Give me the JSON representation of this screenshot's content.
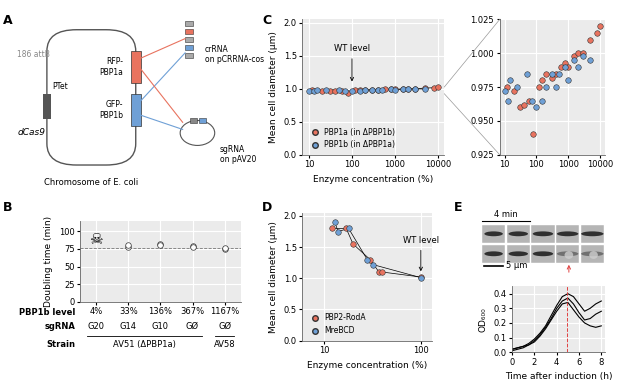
{
  "panel_labels": [
    "A",
    "B",
    "C",
    "D",
    "E"
  ],
  "diagram": {
    "chromosome": "Chromosome of E. coli",
    "attb": "186 attB",
    "promoter": "PTet",
    "dcas9": "dCas9",
    "rfp": "RFP-\nPBP1a",
    "gfp": "GFP-\nPBP1b",
    "crrna": "crRNA\non pCRRNA-cos",
    "sgrna": "sgRNA\non pAV20"
  },
  "images": {
    "time_scale": "4 min",
    "length_scale": "5 µm"
  },
  "chart_data": [
    {
      "type": "scatter",
      "ylabel": "Doubling time (min)",
      "categories": [
        "4%",
        "33%",
        "136%",
        "367%",
        "1167%"
      ],
      "row_labels": [
        "PBP1b level",
        "sgRNA",
        "Strain"
      ],
      "sgrna": [
        "G20",
        "G14",
        "G10",
        "GØ",
        "GØ"
      ],
      "strains": [
        {
          "label": "AV51 (ΔPBP1a)",
          "first": 0,
          "last": 3
        },
        {
          "label": "AV58",
          "first": 4,
          "last": 4
        }
      ],
      "series": [
        {
          "values": [
            null,
            78,
            82,
            79,
            75
          ],
          "color": "#ffffff"
        },
        {
          "values": [
            null,
            80,
            81,
            78,
            76
          ],
          "color": "#ffffff"
        }
      ],
      "lethal": {
        "index": 0,
        "value": 88,
        "label": "☠"
      },
      "reference_line": 76,
      "ylim": [
        0,
        115
      ],
      "yticks": [
        0,
        25,
        50,
        75,
        100
      ],
      "grid": true
    },
    {
      "type": "line",
      "xlabel": "Enzyme concentration (%)",
      "ylabel": "Mean cell diameter (µm)",
      "log": "x",
      "series": [
        {
          "name": "PBP1a (in ΔPBP1b)",
          "color": "#e8735f",
          "marker": "o",
          "x": [
            12,
            20,
            30,
            40,
            60,
            80,
            120,
            150,
            200,
            300,
            400,
            600,
            800,
            1000,
            1500,
            2000,
            3000,
            5000,
            8000,
            10000
          ],
          "values": [
            0.975,
            0.972,
            0.96,
            0.962,
            0.965,
            0.94,
            0.975,
            0.98,
            0.985,
            0.982,
            0.985,
            0.99,
            0.993,
            0.99,
            0.998,
            1.0,
            1.0,
            1.01,
            1.015,
            1.02
          ]
        },
        {
          "name": "PBP1b (in ΔPBP1a)",
          "color": "#6fa0d6",
          "marker": "o",
          "x": [
            10,
            13,
            15,
            25,
            50,
            70,
            100,
            150,
            200,
            300,
            400,
            500,
            800,
            1000,
            1500,
            2000,
            3000,
            5000
          ],
          "values": [
            0.972,
            0.965,
            0.98,
            0.975,
            0.985,
            0.965,
            0.96,
            0.965,
            0.975,
            0.985,
            0.975,
            0.985,
            0.99,
            0.98,
            0.995,
            0.99,
            0.998,
            0.995
          ]
        }
      ],
      "annotation": {
        "text": "WT level",
        "x": 100
      },
      "xlim": [
        7,
        14000
      ],
      "xticks": [
        10,
        100,
        1000,
        10000
      ],
      "ylim": [
        0,
        2.05
      ],
      "yticks": [
        0.0,
        0.5,
        1.0,
        1.5,
        2.0
      ],
      "legend": "lower left",
      "grid": true
    },
    {
      "type": "scatter",
      "log": "x",
      "series": [
        {
          "color": "#e8735f",
          "marker": "o",
          "x": [
            12,
            20,
            30,
            40,
            60,
            80,
            120,
            150,
            200,
            300,
            400,
            600,
            800,
            1000,
            1500,
            2000,
            3000,
            5000,
            8000,
            10000
          ],
          "values": [
            0.975,
            0.972,
            0.96,
            0.962,
            0.965,
            0.94,
            0.975,
            0.98,
            0.985,
            0.982,
            0.985,
            0.99,
            0.993,
            0.99,
            0.998,
            1.0,
            1.0,
            1.01,
            1.015,
            1.02
          ]
        },
        {
          "color": "#6fa0d6",
          "marker": "o",
          "x": [
            10,
            13,
            15,
            25,
            50,
            70,
            100,
            150,
            200,
            300,
            400,
            500,
            800,
            1000,
            1500,
            2000,
            3000,
            5000
          ],
          "values": [
            0.972,
            0.965,
            0.98,
            0.975,
            0.985,
            0.965,
            0.96,
            0.965,
            0.975,
            0.985,
            0.975,
            0.985,
            0.99,
            0.98,
            0.995,
            0.99,
            0.998,
            0.995
          ]
        }
      ],
      "xlim": [
        7,
        14000
      ],
      "xticks": [
        10,
        100,
        1000,
        10000
      ],
      "ylim": [
        0.925,
        1.025
      ],
      "yticks": [
        0.925,
        {
          "value": 0.95,
          "label": "0.950"
        },
        0.975,
        {
          "value": 1.0,
          "label": "1.000"
        },
        1.025
      ],
      "grid": true
    },
    {
      "type": "line",
      "xlabel": "Enzyme concentration (%)",
      "ylabel": "Mean cell diameter (µm)",
      "log": "x",
      "series": [
        {
          "name": "PBP2-RodA",
          "color": "#e8735f",
          "marker": "o",
          "x": [
            12,
            17,
            20,
            30,
            37,
            40,
            100
          ],
          "values": [
            1.8,
            1.8,
            1.55,
            1.3,
            1.1,
            1.1,
            1.02
          ]
        },
        {
          "name": "MreBCD",
          "color": "#6fa0d6",
          "marker": "o",
          "x": [
            13,
            14,
            18,
            28,
            32,
            100
          ],
          "values": [
            1.9,
            1.75,
            1.8,
            1.3,
            1.22,
            1.01
          ]
        }
      ],
      "annotation": {
        "text": "WT level",
        "x": 100
      },
      "xlim": [
        6,
        130
      ],
      "xticks": [
        10,
        100
      ],
      "ylim": [
        0,
        2.05
      ],
      "yticks": [
        0.0,
        0.5,
        1.0,
        1.5,
        2.0
      ],
      "legend": "lower left",
      "grid": true
    },
    {
      "type": "line",
      "xlabel": "Time after induction (h)",
      "ylabel": "OD₆₀₀",
      "x": [
        0,
        0.5,
        1,
        1.5,
        2,
        2.5,
        3,
        3.5,
        4,
        4.5,
        5,
        5.5,
        6,
        6.5,
        7,
        7.5,
        8
      ],
      "series": [
        {
          "color": "#000000",
          "values": [
            0.02,
            0.03,
            0.04,
            0.06,
            0.09,
            0.13,
            0.18,
            0.25,
            0.32,
            0.38,
            0.4,
            0.38,
            0.33,
            0.28,
            0.3,
            0.33,
            0.35
          ]
        },
        {
          "color": "#000000",
          "values": [
            0.02,
            0.03,
            0.04,
            0.05,
            0.08,
            0.12,
            0.17,
            0.23,
            0.3,
            0.35,
            0.37,
            0.33,
            0.27,
            0.22,
            0.23,
            0.26,
            0.28
          ]
        },
        {
          "color": "#000000",
          "values": [
            0.01,
            0.02,
            0.03,
            0.05,
            0.07,
            0.11,
            0.16,
            0.22,
            0.28,
            0.33,
            0.34,
            0.29,
            0.24,
            0.2,
            0.18,
            0.17,
            0.18
          ]
        }
      ],
      "highlight_x": 4.9,
      "xlim": [
        0,
        8.3
      ],
      "xticks": [
        0,
        2,
        4,
        6,
        8
      ],
      "ylim": [
        0,
        0.45
      ],
      "yticks": [
        0.0,
        0.1,
        0.2,
        0.3,
        0.4
      ],
      "grid": true
    }
  ]
}
